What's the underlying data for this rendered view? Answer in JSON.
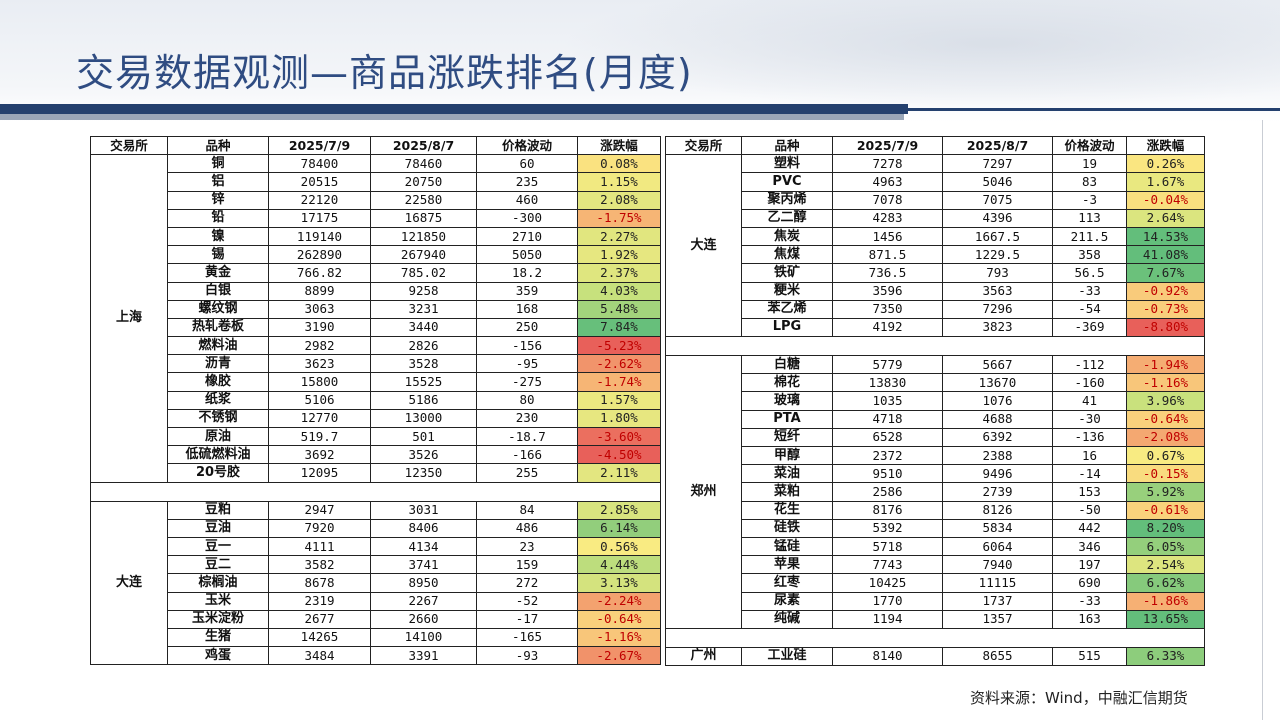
{
  "title": "交易数据观测—商品涨跌排名(月度)",
  "source": "资料来源：Wind，中融汇信期货",
  "headers": [
    "交易所",
    "品种",
    "2025/7/9",
    "2025/8/7",
    "价格波动",
    "涨跌幅"
  ],
  "left_groups": [
    {
      "exchange": "上海",
      "rows": [
        {
          "name": "铜",
          "p1": "78400",
          "p2": "78460",
          "chg": "60",
          "pct": "0.08%",
          "pv": 0.08
        },
        {
          "name": "铝",
          "p1": "20515",
          "p2": "20750",
          "chg": "235",
          "pct": "1.15%",
          "pv": 1.15
        },
        {
          "name": "锌",
          "p1": "22120",
          "p2": "22580",
          "chg": "460",
          "pct": "2.08%",
          "pv": 2.08
        },
        {
          "name": "铅",
          "p1": "17175",
          "p2": "16875",
          "chg": "-300",
          "pct": "-1.75%",
          "pv": -1.75
        },
        {
          "name": "镍",
          "p1": "119140",
          "p2": "121850",
          "chg": "2710",
          "pct": "2.27%",
          "pv": 2.27
        },
        {
          "name": "锡",
          "p1": "262890",
          "p2": "267940",
          "chg": "5050",
          "pct": "1.92%",
          "pv": 1.92
        },
        {
          "name": "黄金",
          "p1": "766.82",
          "p2": "785.02",
          "chg": "18.2",
          "pct": "2.37%",
          "pv": 2.37
        },
        {
          "name": "白银",
          "p1": "8899",
          "p2": "9258",
          "chg": "359",
          "pct": "4.03%",
          "pv": 4.03
        },
        {
          "name": "螺纹钢",
          "p1": "3063",
          "p2": "3231",
          "chg": "168",
          "pct": "5.48%",
          "pv": 5.48
        },
        {
          "name": "热轧卷板",
          "p1": "3190",
          "p2": "3440",
          "chg": "250",
          "pct": "7.84%",
          "pv": 7.84
        },
        {
          "name": "燃料油",
          "p1": "2982",
          "p2": "2826",
          "chg": "-156",
          "pct": "-5.23%",
          "pv": -5.23
        },
        {
          "name": "沥青",
          "p1": "3623",
          "p2": "3528",
          "chg": "-95",
          "pct": "-2.62%",
          "pv": -2.62
        },
        {
          "name": "橡胶",
          "p1": "15800",
          "p2": "15525",
          "chg": "-275",
          "pct": "-1.74%",
          "pv": -1.74
        },
        {
          "name": "纸浆",
          "p1": "5106",
          "p2": "5186",
          "chg": "80",
          "pct": "1.57%",
          "pv": 1.57
        },
        {
          "name": "不锈钢",
          "p1": "12770",
          "p2": "13000",
          "chg": "230",
          "pct": "1.80%",
          "pv": 1.8
        },
        {
          "name": "原油",
          "p1": "519.7",
          "p2": "501",
          "chg": "-18.7",
          "pct": "-3.60%",
          "pv": -3.6
        },
        {
          "name": "低硫燃料油",
          "p1": "3692",
          "p2": "3526",
          "chg": "-166",
          "pct": "-4.50%",
          "pv": -4.5
        },
        {
          "name": "20号胶",
          "p1": "12095",
          "p2": "12350",
          "chg": "255",
          "pct": "2.11%",
          "pv": 2.11
        }
      ]
    },
    {
      "exchange": "大连",
      "rows": [
        {
          "name": "豆粕",
          "p1": "2947",
          "p2": "3031",
          "chg": "84",
          "pct": "2.85%",
          "pv": 2.85
        },
        {
          "name": "豆油",
          "p1": "7920",
          "p2": "8406",
          "chg": "486",
          "pct": "6.14%",
          "pv": 6.14
        },
        {
          "name": "豆一",
          "p1": "4111",
          "p2": "4134",
          "chg": "23",
          "pct": "0.56%",
          "pv": 0.56
        },
        {
          "name": "豆二",
          "p1": "3582",
          "p2": "3741",
          "chg": "159",
          "pct": "4.44%",
          "pv": 4.44
        },
        {
          "name": "棕榈油",
          "p1": "8678",
          "p2": "8950",
          "chg": "272",
          "pct": "3.13%",
          "pv": 3.13
        },
        {
          "name": "玉米",
          "p1": "2319",
          "p2": "2267",
          "chg": "-52",
          "pct": "-2.24%",
          "pv": -2.24
        },
        {
          "name": "玉米淀粉",
          "p1": "2677",
          "p2": "2660",
          "chg": "-17",
          "pct": "-0.64%",
          "pv": -0.64
        },
        {
          "name": "生猪",
          "p1": "14265",
          "p2": "14100",
          "chg": "-165",
          "pct": "-1.16%",
          "pv": -1.16
        },
        {
          "name": "鸡蛋",
          "p1": "3484",
          "p2": "3391",
          "chg": "-93",
          "pct": "-2.67%",
          "pv": -2.67
        }
      ]
    }
  ],
  "right_groups": [
    {
      "exchange": "大连",
      "rows": [
        {
          "name": "塑料",
          "p1": "7278",
          "p2": "7297",
          "chg": "19",
          "pct": "0.26%",
          "pv": 0.26
        },
        {
          "name": "PVC",
          "p1": "4963",
          "p2": "5046",
          "chg": "83",
          "pct": "1.67%",
          "pv": 1.67
        },
        {
          "name": "聚丙烯",
          "p1": "7078",
          "p2": "7075",
          "chg": "-3",
          "pct": "-0.04%",
          "pv": -0.04
        },
        {
          "name": "乙二醇",
          "p1": "4283",
          "p2": "4396",
          "chg": "113",
          "pct": "2.64%",
          "pv": 2.64
        },
        {
          "name": "焦炭",
          "p1": "1456",
          "p2": "1667.5",
          "chg": "211.5",
          "pct": "14.53%",
          "pv": 14.53
        },
        {
          "name": "焦煤",
          "p1": "871.5",
          "p2": "1229.5",
          "chg": "358",
          "pct": "41.08%",
          "pv": 41.08
        },
        {
          "name": "铁矿",
          "p1": "736.5",
          "p2": "793",
          "chg": "56.5",
          "pct": "7.67%",
          "pv": 7.67
        },
        {
          "name": "粳米",
          "p1": "3596",
          "p2": "3563",
          "chg": "-33",
          "pct": "-0.92%",
          "pv": -0.92
        },
        {
          "name": "苯乙烯",
          "p1": "7350",
          "p2": "7296",
          "chg": "-54",
          "pct": "-0.73%",
          "pv": -0.73
        },
        {
          "name": "LPG",
          "p1": "4192",
          "p2": "3823",
          "chg": "-369",
          "pct": "-8.80%",
          "pv": -8.8
        }
      ]
    },
    {
      "exchange": "郑州",
      "rows": [
        {
          "name": "白糖",
          "p1": "5779",
          "p2": "5667",
          "chg": "-112",
          "pct": "-1.94%",
          "pv": -1.94
        },
        {
          "name": "棉花",
          "p1": "13830",
          "p2": "13670",
          "chg": "-160",
          "pct": "-1.16%",
          "pv": -1.16
        },
        {
          "name": "玻璃",
          "p1": "1035",
          "p2": "1076",
          "chg": "41",
          "pct": "3.96%",
          "pv": 3.96
        },
        {
          "name": "PTA",
          "p1": "4718",
          "p2": "4688",
          "chg": "-30",
          "pct": "-0.64%",
          "pv": -0.64
        },
        {
          "name": "短纤",
          "p1": "6528",
          "p2": "6392",
          "chg": "-136",
          "pct": "-2.08%",
          "pv": -2.08
        },
        {
          "name": "甲醇",
          "p1": "2372",
          "p2": "2388",
          "chg": "16",
          "pct": "0.67%",
          "pv": 0.67
        },
        {
          "name": "菜油",
          "p1": "9510",
          "p2": "9496",
          "chg": "-14",
          "pct": "-0.15%",
          "pv": -0.15
        },
        {
          "name": "菜粕",
          "p1": "2586",
          "p2": "2739",
          "chg": "153",
          "pct": "5.92%",
          "pv": 5.92
        },
        {
          "name": "花生",
          "p1": "8176",
          "p2": "8126",
          "chg": "-50",
          "pct": "-0.61%",
          "pv": -0.61
        },
        {
          "name": "硅铁",
          "p1": "5392",
          "p2": "5834",
          "chg": "442",
          "pct": "8.20%",
          "pv": 8.2
        },
        {
          "name": "锰硅",
          "p1": "5718",
          "p2": "6064",
          "chg": "346",
          "pct": "6.05%",
          "pv": 6.05
        },
        {
          "name": "苹果",
          "p1": "7743",
          "p2": "7940",
          "chg": "197",
          "pct": "2.54%",
          "pv": 2.54
        },
        {
          "name": "红枣",
          "p1": "10425",
          "p2": "11115",
          "chg": "690",
          "pct": "6.62%",
          "pv": 6.62
        },
        {
          "name": "尿素",
          "p1": "1770",
          "p2": "1737",
          "chg": "-33",
          "pct": "-1.86%",
          "pv": -1.86
        },
        {
          "name": "纯碱",
          "p1": "1194",
          "p2": "1357",
          "chg": "163",
          "pct": "13.65%",
          "pv": 13.65
        }
      ]
    },
    {
      "exchange": "广州",
      "rows": [
        {
          "name": "工业硅",
          "p1": "8140",
          "p2": "8655",
          "chg": "515",
          "pct": "6.33%",
          "pv": 6.33
        }
      ]
    }
  ]
}
